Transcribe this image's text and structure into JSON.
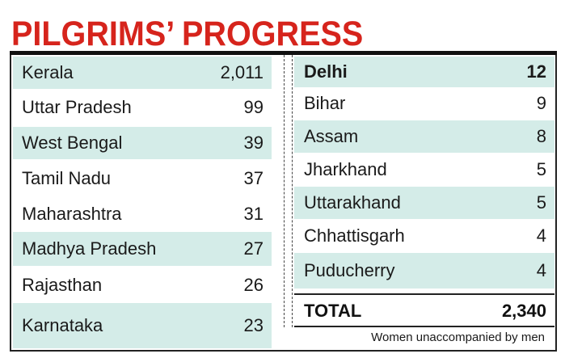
{
  "header": {
    "title": "PILGRIMS’ PROGRESS"
  },
  "chart_data": {
    "type": "table",
    "title": "PILGRIMS’ PROGRESS",
    "left_rows": [
      {
        "state": "Kerala",
        "value": "2,011",
        "shaded": true
      },
      {
        "state": "Uttar Pradesh",
        "value": "99",
        "shaded": false
      },
      {
        "state": "West Bengal",
        "value": "39",
        "shaded": true
      },
      {
        "state": "Tamil Nadu",
        "value": "37",
        "shaded": false
      },
      {
        "state": "Maharashtra",
        "value": "31",
        "shaded": false
      },
      {
        "state": "Madhya Pradesh",
        "value": "27",
        "shaded": true
      },
      {
        "state": "Rajasthan",
        "value": "26",
        "shaded": false
      },
      {
        "state": "Karnataka",
        "value": "23",
        "shaded": true
      }
    ],
    "right_rows": [
      {
        "state": "Delhi",
        "value": "12",
        "shaded": true,
        "bold": true
      },
      {
        "state": "Bihar",
        "value": "9",
        "shaded": false,
        "bold": false
      },
      {
        "state": "Assam",
        "value": "8",
        "shaded": true,
        "bold": false
      },
      {
        "state": "Jharkhand",
        "value": "5",
        "shaded": false,
        "bold": false
      },
      {
        "state": "Uttarakhand",
        "value": "5",
        "shaded": true,
        "bold": false
      },
      {
        "state": "Chhattisgarh",
        "value": "4",
        "shaded": false,
        "bold": false
      },
      {
        "state": "Puducherry",
        "value": "4",
        "shaded": true,
        "bold": false
      }
    ],
    "total": {
      "label": "TOTAL",
      "value": "2,340"
    },
    "note": "Women unaccompanied by men",
    "colors": {
      "title": "#d6241c",
      "shade": "#d4ece8"
    }
  }
}
